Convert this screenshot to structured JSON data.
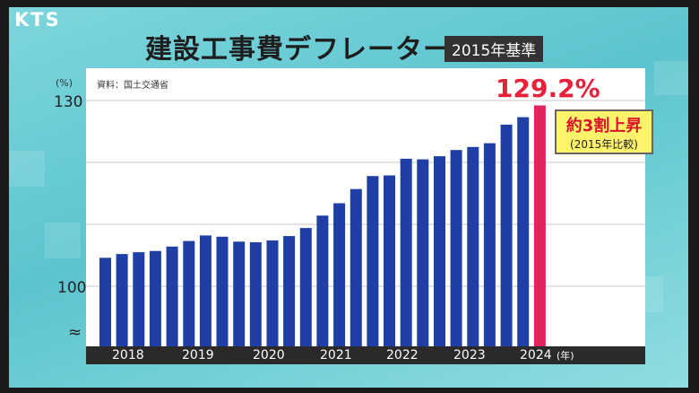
{
  "broadcaster": {
    "logo_text": "KTS"
  },
  "header": {
    "title": "建設工事費デフレーター",
    "base_badge": "2015年基準"
  },
  "source_note": "資料：国土交通省",
  "colors": {
    "bar": "#1f3fa6",
    "highlight_bar": "#e0245e",
    "highlight_text": "#e8203a",
    "callout_bg": "#fff36a"
  },
  "callout": {
    "main": "約3割上昇",
    "sub": "(2015年比較)"
  },
  "chart_data": {
    "type": "bar",
    "title": "建設工事費デフレーター",
    "subtitle": "2015年基準",
    "ylabel": "(%)",
    "xlabel": "(年)",
    "ylim": [
      100,
      130
    ],
    "yticks": [
      100,
      130
    ],
    "axis_break_symbol": "≈",
    "grid": true,
    "year_labels": [
      "2018",
      "2019",
      "2020",
      "2021",
      "2022",
      "2023",
      "2024"
    ],
    "highlight_label": "129.2%",
    "values": [
      104.6,
      105.2,
      105.5,
      105.7,
      106.4,
      107.3,
      108.2,
      108.0,
      107.2,
      107.1,
      107.4,
      108.1,
      109.4,
      111.4,
      113.4,
      115.7,
      117.8,
      117.9,
      120.6,
      120.5,
      121.0,
      122.0,
      122.5,
      123.1,
      126.1,
      127.3,
      129.2
    ]
  }
}
